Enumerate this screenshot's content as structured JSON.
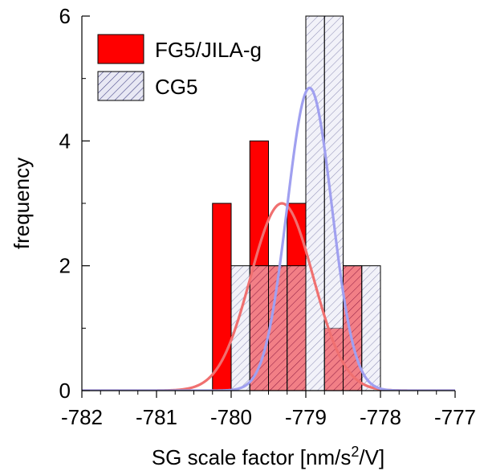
{
  "chart_data": {
    "type": "bar",
    "title": "",
    "xlabel": "SG scale factor [nm/s",
    "xlabel_sup": "2",
    "xlabel_tail": "/V]",
    "ylabel": "frequency",
    "xlim": [
      -782,
      -777
    ],
    "ylim": [
      0,
      6
    ],
    "x_ticks": [
      -782,
      -781,
      -780,
      -779,
      -778,
      -777
    ],
    "x_tick_labels": [
      "-782",
      "-781",
      "-780",
      "-779",
      "-778",
      "-777"
    ],
    "y_ticks": [
      0,
      2,
      4,
      6
    ],
    "y_tick_labels": [
      "0",
      "2",
      "4",
      "6"
    ],
    "legend_position": "top-left",
    "series": [
      {
        "name": "FG5/JILA-g",
        "color": "#ff0000",
        "style": "solid",
        "bins": [
          {
            "x0": -780.25,
            "x1": -780.0,
            "value": 3
          },
          {
            "x0": -779.75,
            "x1": -779.5,
            "value": 4
          },
          {
            "x0": -779.5,
            "x1": -779.25,
            "value": 2
          },
          {
            "x0": -779.25,
            "x1": -779.0,
            "value": 3
          },
          {
            "x0": -778.75,
            "x1": -778.5,
            "value": 1
          },
          {
            "x0": -778.5,
            "x1": -778.25,
            "value": 2
          }
        ],
        "fit": {
          "mean": -779.32,
          "sigma": 0.42,
          "peak": 3.0,
          "color": "#f07070"
        }
      },
      {
        "name": "CG5",
        "color": "#e4e4f2",
        "hatch_color": "#3a3a80",
        "style": "hatched",
        "bins": [
          {
            "x0": -780.0,
            "x1": -779.75,
            "value": 2
          },
          {
            "x0": -779.75,
            "x1": -779.5,
            "value": 2
          },
          {
            "x0": -779.5,
            "x1": -779.25,
            "value": 2
          },
          {
            "x0": -779.25,
            "x1": -779.0,
            "value": 2
          },
          {
            "x0": -779.0,
            "x1": -778.75,
            "value": 6
          },
          {
            "x0": -778.75,
            "x1": -778.5,
            "value": 6
          },
          {
            "x0": -778.5,
            "x1": -778.25,
            "value": 2
          },
          {
            "x0": -778.25,
            "x1": -778.0,
            "value": 2
          }
        ],
        "fit": {
          "mean": -778.95,
          "sigma": 0.3,
          "peak": 4.85,
          "color": "#a0a0f0"
        }
      }
    ]
  }
}
